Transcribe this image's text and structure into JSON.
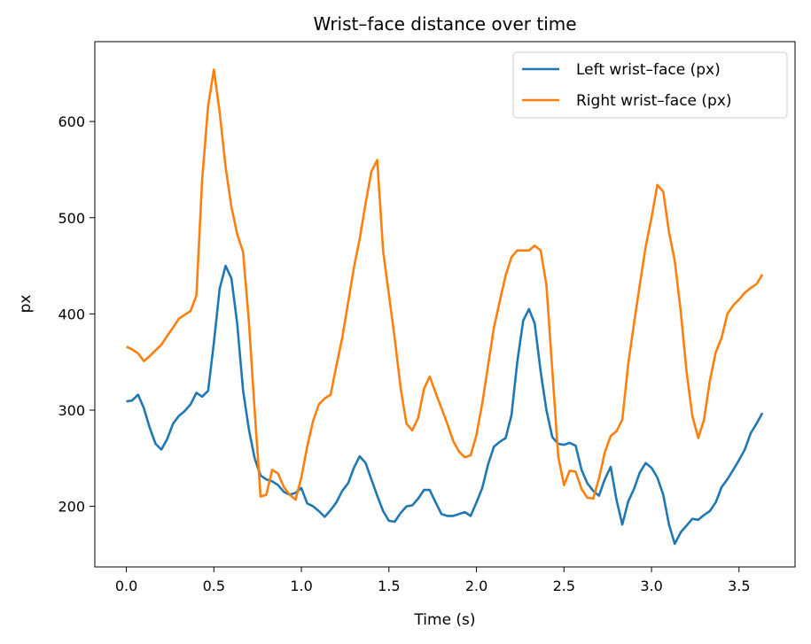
{
  "chart_data": {
    "type": "line",
    "title": "Wrist–face distance over time",
    "xlabel": "Time (s)",
    "ylabel": "px",
    "xlim": [
      -0.18,
      3.82
    ],
    "ylim": [
      137,
      683
    ],
    "xticks": [
      0.0,
      0.5,
      1.0,
      1.5,
      2.0,
      2.5,
      3.0,
      3.5
    ],
    "xtick_labels": [
      "0.0",
      "0.5",
      "1.0",
      "1.5",
      "2.0",
      "2.5",
      "3.0",
      "3.5"
    ],
    "yticks": [
      200,
      300,
      400,
      500,
      600
    ],
    "ytick_labels": [
      "200",
      "300",
      "400",
      "500",
      "600"
    ],
    "grid": false,
    "legend_position": "top-right",
    "series": [
      {
        "name": "Left wrist–face (px)",
        "color": "#1f77b4",
        "points": [
          [
            0.0,
            309
          ],
          [
            0.033,
            310
          ],
          [
            0.067,
            316
          ],
          [
            0.1,
            302
          ],
          [
            0.133,
            282
          ],
          [
            0.167,
            265
          ],
          [
            0.2,
            259
          ],
          [
            0.233,
            270
          ],
          [
            0.267,
            286
          ],
          [
            0.3,
            294
          ],
          [
            0.333,
            299
          ],
          [
            0.367,
            306
          ],
          [
            0.4,
            318
          ],
          [
            0.433,
            314
          ],
          [
            0.467,
            320
          ],
          [
            0.5,
            370
          ],
          [
            0.533,
            426
          ],
          [
            0.567,
            450
          ],
          [
            0.6,
            437
          ],
          [
            0.633,
            390
          ],
          [
            0.667,
            320
          ],
          [
            0.7,
            280
          ],
          [
            0.733,
            250
          ],
          [
            0.767,
            232
          ],
          [
            0.8,
            228
          ],
          [
            0.833,
            226
          ],
          [
            0.867,
            222
          ],
          [
            0.9,
            215
          ],
          [
            0.933,
            212
          ],
          [
            0.967,
            214
          ],
          [
            1.0,
            219
          ],
          [
            1.033,
            203
          ],
          [
            1.067,
            200
          ],
          [
            1.1,
            195
          ],
          [
            1.133,
            189
          ],
          [
            1.167,
            196
          ],
          [
            1.2,
            204
          ],
          [
            1.233,
            216
          ],
          [
            1.267,
            224
          ],
          [
            1.3,
            240
          ],
          [
            1.333,
            252
          ],
          [
            1.367,
            245
          ],
          [
            1.4,
            228
          ],
          [
            1.433,
            211
          ],
          [
            1.467,
            195
          ],
          [
            1.5,
            185
          ],
          [
            1.533,
            184
          ],
          [
            1.567,
            193
          ],
          [
            1.6,
            200
          ],
          [
            1.633,
            201
          ],
          [
            1.667,
            208
          ],
          [
            1.7,
            217
          ],
          [
            1.733,
            217
          ],
          [
            1.767,
            204
          ],
          [
            1.8,
            192
          ],
          [
            1.833,
            190
          ],
          [
            1.867,
            190
          ],
          [
            1.9,
            192
          ],
          [
            1.933,
            194
          ],
          [
            1.967,
            190
          ],
          [
            2.0,
            204
          ],
          [
            2.033,
            219
          ],
          [
            2.067,
            244
          ],
          [
            2.1,
            262
          ],
          [
            2.133,
            267
          ],
          [
            2.167,
            271
          ],
          [
            2.2,
            295
          ],
          [
            2.233,
            350
          ],
          [
            2.267,
            393
          ],
          [
            2.3,
            405
          ],
          [
            2.333,
            390
          ],
          [
            2.367,
            340
          ],
          [
            2.4,
            300
          ],
          [
            2.433,
            272
          ],
          [
            2.467,
            265
          ],
          [
            2.5,
            264
          ],
          [
            2.533,
            266
          ],
          [
            2.567,
            263
          ],
          [
            2.6,
            238
          ],
          [
            2.633,
            224
          ],
          [
            2.667,
            216
          ],
          [
            2.7,
            211
          ],
          [
            2.733,
            228
          ],
          [
            2.767,
            241
          ],
          [
            2.8,
            207
          ],
          [
            2.833,
            181
          ],
          [
            2.867,
            205
          ],
          [
            2.9,
            218
          ],
          [
            2.933,
            235
          ],
          [
            2.967,
            245
          ],
          [
            3.0,
            240
          ],
          [
            3.033,
            230
          ],
          [
            3.067,
            212
          ],
          [
            3.1,
            181
          ],
          [
            3.133,
            161
          ],
          [
            3.167,
            173
          ],
          [
            3.2,
            180
          ],
          [
            3.233,
            187
          ],
          [
            3.267,
            186
          ],
          [
            3.3,
            191
          ],
          [
            3.333,
            195
          ],
          [
            3.367,
            204
          ],
          [
            3.4,
            220
          ],
          [
            3.433,
            228
          ],
          [
            3.467,
            238
          ],
          [
            3.5,
            248
          ],
          [
            3.533,
            259
          ],
          [
            3.567,
            276
          ],
          [
            3.6,
            286
          ],
          [
            3.633,
            297
          ]
        ]
      },
      {
        "name": "Right wrist–face (px)",
        "color": "#ff7f0e",
        "points": [
          [
            0.0,
            366
          ],
          [
            0.033,
            363
          ],
          [
            0.067,
            359
          ],
          [
            0.1,
            351
          ],
          [
            0.133,
            356
          ],
          [
            0.167,
            362
          ],
          [
            0.2,
            368
          ],
          [
            0.233,
            377
          ],
          [
            0.267,
            386
          ],
          [
            0.3,
            395
          ],
          [
            0.333,
            399
          ],
          [
            0.367,
            403
          ],
          [
            0.4,
            419
          ],
          [
            0.433,
            540
          ],
          [
            0.467,
            616
          ],
          [
            0.5,
            654
          ],
          [
            0.533,
            610
          ],
          [
            0.567,
            553
          ],
          [
            0.6,
            511
          ],
          [
            0.633,
            483
          ],
          [
            0.667,
            464
          ],
          [
            0.7,
            392
          ],
          [
            0.733,
            300
          ],
          [
            0.767,
            210
          ],
          [
            0.8,
            212
          ],
          [
            0.833,
            238
          ],
          [
            0.867,
            234
          ],
          [
            0.9,
            220
          ],
          [
            0.933,
            212
          ],
          [
            0.967,
            207
          ],
          [
            1.0,
            230
          ],
          [
            1.033,
            262
          ],
          [
            1.067,
            289
          ],
          [
            1.1,
            306
          ],
          [
            1.133,
            312
          ],
          [
            1.167,
            316
          ],
          [
            1.2,
            346
          ],
          [
            1.233,
            375
          ],
          [
            1.267,
            412
          ],
          [
            1.3,
            448
          ],
          [
            1.333,
            478
          ],
          [
            1.367,
            515
          ],
          [
            1.4,
            548
          ],
          [
            1.433,
            560
          ],
          [
            1.467,
            465
          ],
          [
            1.5,
            420
          ],
          [
            1.533,
            375
          ],
          [
            1.567,
            323
          ],
          [
            1.6,
            286
          ],
          [
            1.633,
            279
          ],
          [
            1.667,
            292
          ],
          [
            1.7,
            322
          ],
          [
            1.733,
            335
          ],
          [
            1.767,
            318
          ],
          [
            1.8,
            302
          ],
          [
            1.833,
            286
          ],
          [
            1.867,
            268
          ],
          [
            1.9,
            257
          ],
          [
            1.933,
            251
          ],
          [
            1.967,
            253
          ],
          [
            2.0,
            274
          ],
          [
            2.033,
            307
          ],
          [
            2.067,
            347
          ],
          [
            2.1,
            386
          ],
          [
            2.133,
            413
          ],
          [
            2.167,
            440
          ],
          [
            2.2,
            459
          ],
          [
            2.233,
            466
          ],
          [
            2.267,
            466
          ],
          [
            2.3,
            466
          ],
          [
            2.333,
            471
          ],
          [
            2.367,
            466
          ],
          [
            2.4,
            430
          ],
          [
            2.433,
            342
          ],
          [
            2.467,
            252
          ],
          [
            2.5,
            222
          ],
          [
            2.533,
            237
          ],
          [
            2.567,
            236
          ],
          [
            2.6,
            218
          ],
          [
            2.633,
            209
          ],
          [
            2.667,
            208
          ],
          [
            2.7,
            229
          ],
          [
            2.733,
            256
          ],
          [
            2.767,
            273
          ],
          [
            2.8,
            278
          ],
          [
            2.833,
            290
          ],
          [
            2.867,
            348
          ],
          [
            2.9,
            390
          ],
          [
            2.933,
            430
          ],
          [
            2.967,
            470
          ],
          [
            3.0,
            500
          ],
          [
            3.033,
            534
          ],
          [
            3.067,
            527
          ],
          [
            3.1,
            485
          ],
          [
            3.133,
            455
          ],
          [
            3.167,
            403
          ],
          [
            3.2,
            340
          ],
          [
            3.233,
            294
          ],
          [
            3.267,
            271
          ],
          [
            3.3,
            290
          ],
          [
            3.333,
            330
          ],
          [
            3.367,
            360
          ],
          [
            3.4,
            375
          ],
          [
            3.433,
            400
          ],
          [
            3.467,
            409
          ],
          [
            3.5,
            415
          ],
          [
            3.533,
            422
          ],
          [
            3.567,
            427
          ],
          [
            3.6,
            431
          ],
          [
            3.633,
            441
          ]
        ]
      }
    ]
  }
}
